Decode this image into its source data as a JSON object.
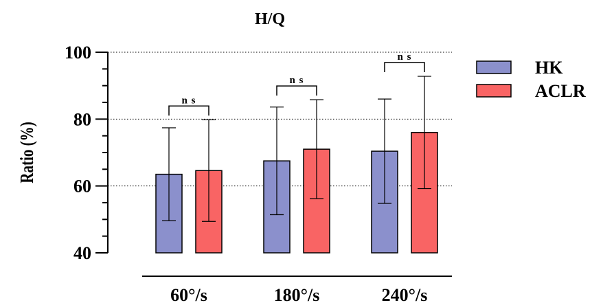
{
  "chart_data": {
    "type": "bar",
    "title": "H/Q",
    "xlabel": "",
    "ylabel": "Ratio (%)",
    "ylim": [
      40,
      100
    ],
    "yticks": [
      "40",
      "60",
      "80",
      "100"
    ],
    "grid": "dotted at 60, 80 and 100",
    "legend_position": "top-right",
    "categories": [
      "60°/s",
      "180°/s",
      "240°/s"
    ],
    "series": [
      {
        "name": "HK",
        "color": "#8b90cc",
        "values": [
          63.5,
          67.5,
          70.4
        ],
        "error": [
          13.9,
          16.1,
          15.6
        ]
      },
      {
        "name": "ACLR",
        "color": "#f96464",
        "values": [
          64.6,
          71.0,
          76.0
        ],
        "error": [
          15.2,
          14.8,
          16.8
        ]
      }
    ],
    "annotations": [
      "n s",
      "n s",
      "n s"
    ]
  }
}
